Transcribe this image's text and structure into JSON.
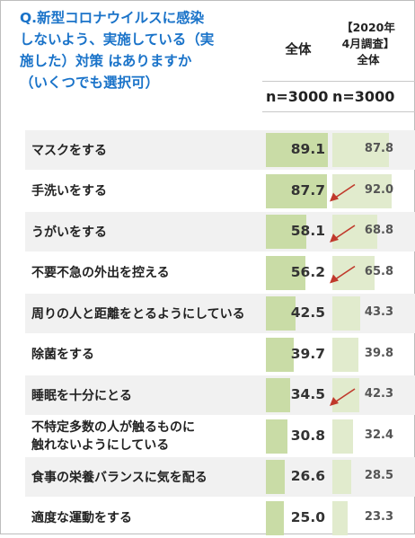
{
  "question": "Q.新型コロナウイルスに感染\nしないよう、実施している（実\n施した）対策 はありますか\n（いくつでも選択可）",
  "columns": {
    "all": "全体",
    "prev": "【2020年\n4月調査】\n全体"
  },
  "n": {
    "all": "n=3000",
    "prev": "n=3000"
  },
  "chart_data": {
    "type": "bar",
    "categories": [
      "マスクをする",
      "手洗いをする",
      "うがいをする",
      "不要不急の外出を控える",
      "周りの人と距離をとるようにしている",
      "除菌をする",
      "睡眠を十分にとる",
      "不特定多数の人が触るものに\n触れないようにしている",
      "食事の栄養バランスに気を配る",
      "適度な運動をする"
    ],
    "series": [
      {
        "name": "全体",
        "values": [
          89.1,
          87.7,
          58.1,
          56.2,
          42.5,
          39.7,
          34.5,
          30.8,
          26.6,
          25.0
        ]
      },
      {
        "name": "【2020年4月調査】全体",
        "values": [
          87.8,
          92.0,
          68.8,
          65.8,
          43.3,
          39.8,
          42.3,
          32.4,
          28.5,
          23.3
        ]
      }
    ],
    "decrease_markers": [
      1,
      2,
      3,
      6
    ],
    "xlim": [
      0,
      100
    ],
    "colors": {
      "all": "#c9dca6",
      "prev": "#e1ebcd",
      "arrow": "#c0392b"
    }
  }
}
